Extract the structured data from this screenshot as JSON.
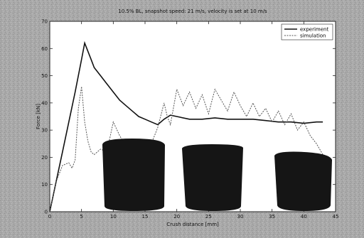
{
  "chart_data": {
    "type": "line",
    "title": "10.5% BL, snapshot speed: 21 m/s, velocity is set at 10 m/s",
    "xlabel": "Crush distance [mm]",
    "ylabel": "Force [kN]",
    "xlim": [
      0,
      45
    ],
    "ylim": [
      0,
      70
    ],
    "xticks": [
      0,
      5,
      10,
      15,
      20,
      25,
      30,
      35,
      40,
      45
    ],
    "yticks": [
      0,
      10,
      20,
      30,
      40,
      50,
      60,
      70
    ],
    "grid": false,
    "legend": "top-right",
    "series": [
      {
        "name": "experiment",
        "color": "#111111",
        "style": "solid",
        "x": [
          0,
          1,
          2,
          3,
          4,
          5,
          5.5,
          6,
          6.5,
          7,
          8,
          9,
          10,
          11,
          12,
          13,
          14,
          15,
          16,
          17,
          18,
          19,
          20,
          22,
          24,
          26,
          28,
          30,
          32,
          34,
          36,
          38,
          40,
          42,
          43
        ],
        "y": [
          0,
          11,
          22,
          33,
          44,
          56,
          62,
          59,
          56,
          53,
          50,
          47,
          44,
          41,
          39,
          37,
          35,
          34,
          33,
          32,
          34,
          35.5,
          35,
          34,
          34,
          34.5,
          34,
          34,
          34,
          33.5,
          33,
          33,
          32.5,
          33,
          33
        ]
      },
      {
        "name": "simulation",
        "color": "#555555",
        "style": "dashed",
        "x": [
          0,
          1,
          2,
          3,
          3.5,
          4,
          4.5,
          5,
          5.5,
          6,
          6.5,
          7,
          8,
          9,
          10,
          11,
          12,
          13,
          14,
          15,
          16,
          16.5,
          17,
          18,
          18.5,
          19,
          20,
          21,
          22,
          23,
          24,
          25,
          26,
          27,
          28,
          29,
          30,
          31,
          32,
          33,
          34,
          35,
          36,
          37,
          38,
          39,
          40,
          41,
          42,
          43
        ],
        "y": [
          0,
          11,
          17,
          18,
          16,
          19,
          38,
          46,
          33,
          26,
          22,
          21,
          23,
          22,
          33,
          28,
          24,
          22,
          23,
          21,
          25,
          28,
          31,
          40,
          35,
          32,
          45,
          39,
          44,
          38,
          43,
          36,
          45,
          41,
          37,
          44,
          39,
          35,
          40,
          35,
          38,
          33,
          37,
          32,
          36,
          30,
          33,
          28,
          25,
          21
        ]
      }
    ]
  }
}
